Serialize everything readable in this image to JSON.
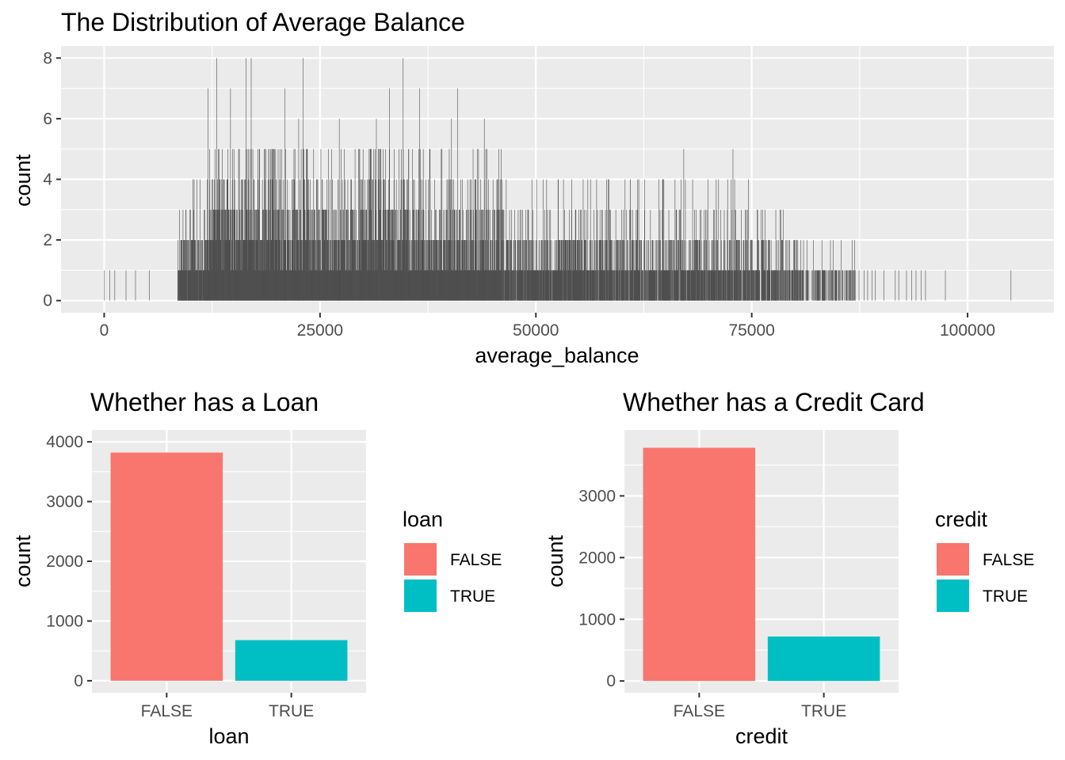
{
  "colors": {
    "panel_bg": "#ebebeb",
    "grid": "#ffffff",
    "histogram_bar": "#4d4d4d",
    "false_fill": "#f8766d",
    "true_fill": "#00bfc4"
  },
  "chart_data": [
    {
      "type": "bar",
      "subtype": "histogram",
      "title": "The Distribution of Average Balance",
      "xlabel": "average_balance",
      "ylabel": "count",
      "xlim": [
        -5000,
        110000
      ],
      "ylim": [
        -0.4,
        8.4
      ],
      "x_ticks": [
        0,
        25000,
        50000,
        75000,
        100000
      ],
      "x_tick_labels": [
        "0",
        "25000",
        "50000",
        "75000",
        "100000"
      ],
      "y_ticks": [
        0,
        2,
        4,
        6,
        8
      ],
      "y_tick_labels": [
        "0",
        "2",
        "4",
        "6",
        "8"
      ],
      "grid": true,
      "binwidth": 30,
      "sparse_bins": [
        {
          "x": 0,
          "count": 1
        },
        {
          "x": 600,
          "count": 1
        },
        {
          "x": 1200,
          "count": 1
        },
        {
          "x": 2500,
          "count": 1
        },
        {
          "x": 3600,
          "count": 1
        },
        {
          "x": 5200,
          "count": 1
        },
        {
          "x": 87400,
          "count": 1
        },
        {
          "x": 88000,
          "count": 1
        },
        {
          "x": 88400,
          "count": 1
        },
        {
          "x": 88900,
          "count": 1
        },
        {
          "x": 89300,
          "count": 1
        },
        {
          "x": 90300,
          "count": 1
        },
        {
          "x": 91600,
          "count": 1
        },
        {
          "x": 92000,
          "count": 1
        },
        {
          "x": 92900,
          "count": 1
        },
        {
          "x": 93500,
          "count": 1
        },
        {
          "x": 94000,
          "count": 1
        },
        {
          "x": 94600,
          "count": 1
        },
        {
          "x": 95100,
          "count": 1
        },
        {
          "x": 97400,
          "count": 1
        },
        {
          "x": 105000,
          "count": 1
        }
      ],
      "peak_bins": [
        {
          "x": 12000,
          "count": 7
        },
        {
          "x": 13000,
          "count": 8
        },
        {
          "x": 14600,
          "count": 7
        },
        {
          "x": 16400,
          "count": 8
        },
        {
          "x": 17000,
          "count": 8
        },
        {
          "x": 20900,
          "count": 7
        },
        {
          "x": 22500,
          "count": 6
        },
        {
          "x": 23000,
          "count": 8
        },
        {
          "x": 27200,
          "count": 6
        },
        {
          "x": 31500,
          "count": 6
        },
        {
          "x": 33000,
          "count": 7
        },
        {
          "x": 34600,
          "count": 8
        },
        {
          "x": 36500,
          "count": 7
        },
        {
          "x": 40200,
          "count": 6
        },
        {
          "x": 40900,
          "count": 7
        },
        {
          "x": 44000,
          "count": 6
        },
        {
          "x": 56300,
          "count": 4
        },
        {
          "x": 60900,
          "count": 4
        },
        {
          "x": 64700,
          "count": 4
        },
        {
          "x": 67100,
          "count": 5
        },
        {
          "x": 72800,
          "count": 5
        },
        {
          "x": 79900,
          "count": 2
        },
        {
          "x": 84400,
          "count": 2
        },
        {
          "x": 86600,
          "count": 2
        }
      ],
      "dense_segments": [
        {
          "from": 8500,
          "to": 12000,
          "c1": 0.95,
          "c2": 0.5,
          "c3": 0.18,
          "c4": 0.05,
          "c5": 0.0
        },
        {
          "from": 12000,
          "to": 20000,
          "c1": 1.0,
          "c2": 0.85,
          "c3": 0.55,
          "c4": 0.28,
          "c5": 0.12
        },
        {
          "from": 20000,
          "to": 30000,
          "c1": 1.0,
          "c2": 0.75,
          "c3": 0.42,
          "c4": 0.18,
          "c5": 0.07
        },
        {
          "from": 30000,
          "to": 37000,
          "c1": 1.0,
          "c2": 0.75,
          "c3": 0.42,
          "c4": 0.18,
          "c5": 0.07
        },
        {
          "from": 37000,
          "to": 46000,
          "c1": 0.97,
          "c2": 0.6,
          "c3": 0.3,
          "c4": 0.1,
          "c5": 0.03
        },
        {
          "from": 46000,
          "to": 60000,
          "c1": 0.9,
          "c2": 0.4,
          "c3": 0.12,
          "c4": 0.03,
          "c5": 0.0
        },
        {
          "from": 60000,
          "to": 75000,
          "c1": 0.85,
          "c2": 0.36,
          "c3": 0.1,
          "c4": 0.03,
          "c5": 0.0
        },
        {
          "from": 75000,
          "to": 81000,
          "c1": 0.75,
          "c2": 0.22,
          "c3": 0.05,
          "c4": 0.0,
          "c5": 0.0
        },
        {
          "from": 81000,
          "to": 87000,
          "c1": 0.45,
          "c2": 0.06,
          "c3": 0.0,
          "c4": 0.0,
          "c5": 0.0
        }
      ]
    },
    {
      "type": "bar",
      "title": "Whether has a Loan",
      "xlabel": "loan",
      "ylabel": "count",
      "categories": [
        "FALSE",
        "TRUE"
      ],
      "values": [
        3820,
        680
      ],
      "ylim": [
        -200,
        4200
      ],
      "y_ticks": [
        0,
        1000,
        2000,
        3000,
        4000
      ],
      "y_tick_labels": [
        "0",
        "1000",
        "2000",
        "3000",
        "4000"
      ],
      "grid": true,
      "legend": {
        "title": "loan",
        "placement": "right",
        "entries": [
          "FALSE",
          "TRUE"
        ]
      }
    },
    {
      "type": "bar",
      "title": "Whether has a Credit Card",
      "xlabel": "credit",
      "ylabel": "count",
      "categories": [
        "FALSE",
        "TRUE"
      ],
      "values": [
        3780,
        720
      ],
      "ylim": [
        -190,
        4070
      ],
      "y_ticks": [
        0,
        1000,
        2000,
        3000
      ],
      "y_tick_labels": [
        "0",
        "1000",
        "2000",
        "3000"
      ],
      "grid": true,
      "legend": {
        "title": "credit",
        "placement": "right",
        "entries": [
          "FALSE",
          "TRUE"
        ]
      }
    }
  ]
}
